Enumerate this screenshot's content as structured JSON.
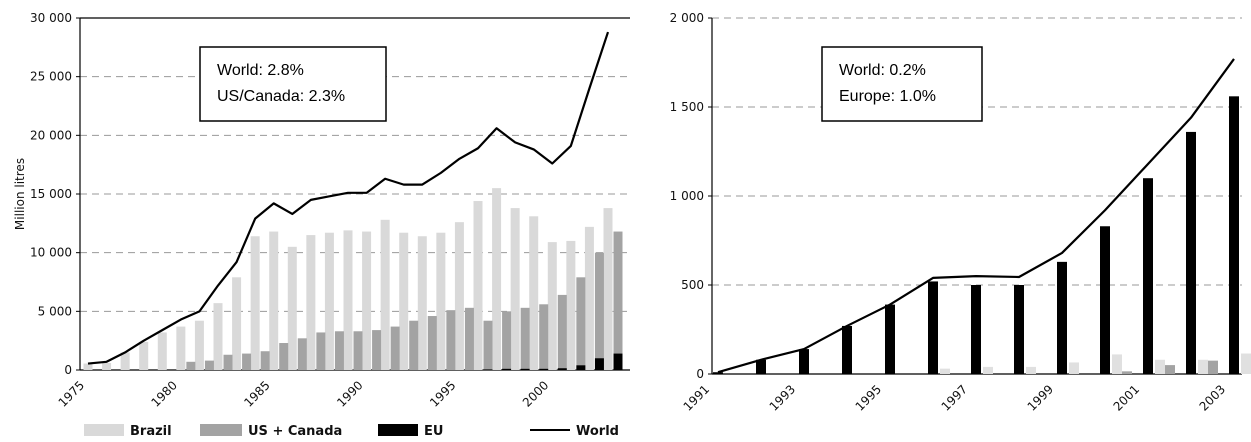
{
  "chart_data": [
    {
      "type": "bar",
      "ylabel": "Million litres",
      "ylim": [
        0,
        30000
      ],
      "yticks": [
        0,
        5000,
        10000,
        15000,
        20000,
        25000,
        30000
      ],
      "ytick_labels": [
        "0",
        "5 000",
        "10 000",
        "15 000",
        "20 000",
        "25 000",
        "30 000"
      ],
      "xticks": [
        1975,
        1980,
        1985,
        1990,
        1995,
        2000
      ],
      "xtick_labels": [
        "1975",
        "1980",
        "1985",
        "1990",
        "1995",
        "2000"
      ],
      "grid": true,
      "annotation": [
        "World: 2.8%",
        "US/Canada: 2.3%"
      ],
      "x": [
        1975,
        1976,
        1977,
        1978,
        1979,
        1980,
        1981,
        1982,
        1983,
        1984,
        1985,
        1986,
        1987,
        1988,
        1989,
        1990,
        1991,
        1992,
        1993,
        1994,
        1995,
        1996,
        1997,
        1998,
        1999,
        2000,
        2001,
        2002,
        2003
      ],
      "series": [
        {
          "name": "Brazil",
          "kind": "bar",
          "color": "#d9d9d9",
          "values": [
            550,
            600,
            1500,
            2400,
            3200,
            3700,
            4200,
            5700,
            7900,
            11400,
            11800,
            10500,
            11500,
            11700,
            11900,
            11800,
            12800,
            11700,
            11400,
            11700,
            12600,
            14400,
            15500,
            13800,
            13100,
            10900,
            11000,
            12200,
            13800
          ]
        },
        {
          "name": "US + Canada",
          "kind": "bar",
          "color": "#a3a3a3",
          "values": [
            0,
            0,
            0,
            0,
            0,
            700,
            800,
            1300,
            1400,
            1600,
            2300,
            2700,
            3200,
            3300,
            3300,
            3400,
            3700,
            4200,
            4600,
            5100,
            5300,
            4200,
            5000,
            5300,
            5600,
            6400,
            7900,
            10000,
            11800
          ]
        },
        {
          "name": "EU",
          "kind": "bar",
          "color": "#000000",
          "values": [
            0,
            0,
            0,
            0,
            0,
            0,
            0,
            0,
            0,
            0,
            0,
            0,
            0,
            0,
            0,
            0,
            0,
            0,
            0,
            0,
            0,
            50,
            100,
            100,
            100,
            150,
            400,
            1000,
            1400
          ]
        },
        {
          "name": "World",
          "kind": "line",
          "color": "#000000",
          "values": [
            550,
            700,
            1500,
            2500,
            3400,
            4300,
            5000,
            7200,
            9200,
            12900,
            14200,
            13300,
            14500,
            14800,
            15100,
            15100,
            16300,
            15800,
            15800,
            16800,
            18000,
            18900,
            20600,
            19400,
            18800,
            17600,
            19100,
            24000,
            28800
          ]
        }
      ]
    },
    {
      "type": "bar",
      "ylim": [
        0,
        2000
      ],
      "yticks": [
        0,
        500,
        1000,
        1500,
        2000
      ],
      "ytick_labels": [
        "0",
        "500",
        "1 000",
        "1 500",
        "2 000"
      ],
      "xticks": [
        1991,
        1993,
        1995,
        1997,
        1999,
        2001,
        2003
      ],
      "xtick_labels": [
        "1991",
        "1993",
        "1995",
        "1997",
        "1999",
        "2001",
        "2003"
      ],
      "grid": true,
      "annotation": [
        "World: 0.2%",
        "Europe: 1.0%"
      ],
      "x": [
        1991,
        1992,
        1993,
        1994,
        1995,
        1996,
        1997,
        1998,
        1999,
        2000,
        2001,
        2002,
        2003
      ],
      "series": [
        {
          "kind": "bar",
          "color": "#000000",
          "values": [
            10,
            80,
            140,
            270,
            390,
            520,
            500,
            500,
            630,
            830,
            1100,
            1360,
            1560
          ]
        },
        {
          "kind": "bar",
          "color": "#e0e0e0",
          "values": [
            0,
            0,
            0,
            0,
            0,
            30,
            40,
            40,
            65,
            110,
            80,
            80,
            115
          ]
        },
        {
          "kind": "bar",
          "color": "#a3a3a3",
          "values": [
            0,
            0,
            0,
            0,
            0,
            0,
            0,
            0,
            0,
            15,
            50,
            75,
            80
          ]
        },
        {
          "kind": "line",
          "color": "#000000",
          "values": [
            10,
            80,
            140,
            270,
            390,
            540,
            550,
            545,
            680,
            920,
            1180,
            1440,
            1770
          ]
        }
      ]
    }
  ],
  "legend": [
    {
      "label": "Brazil",
      "color": "#d9d9d9",
      "kind": "bar"
    },
    {
      "label": "US + Canada",
      "color": "#a3a3a3",
      "kind": "bar"
    },
    {
      "label": "EU",
      "color": "#000000",
      "kind": "bar"
    },
    {
      "label": "World",
      "color": "#000000",
      "kind": "line"
    }
  ]
}
